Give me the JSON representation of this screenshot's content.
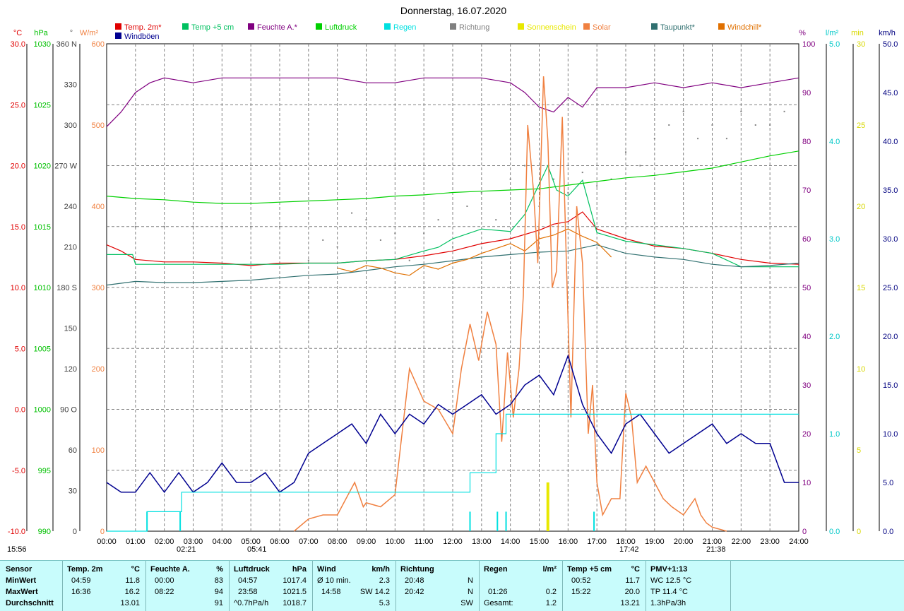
{
  "title": "Donnerstag, 16.07.2020",
  "legend": [
    {
      "label": "Temp. 2m*",
      "color": "#e00000"
    },
    {
      "label": "Temp +5 cm",
      "color": "#00c060"
    },
    {
      "label": "Feuchte A.*",
      "color": "#800080"
    },
    {
      "label": "Luftdruck",
      "color": "#00d000"
    },
    {
      "label": "Regen",
      "color": "#00e0e0"
    },
    {
      "label": "Richtung",
      "color": "#808080"
    },
    {
      "label": "Sonnenschein",
      "color": "#e8e800"
    },
    {
      "label": "Solar",
      "color": "#f08040"
    },
    {
      "label": "Taupunkt*",
      "color": "#307070"
    },
    {
      "label": "Windchill*",
      "color": "#e07000"
    },
    {
      "label": "Windböen",
      "color": "#000090"
    }
  ],
  "axes_units": {
    "temp": "°C",
    "press": "hPa",
    "dir": "°",
    "solar": "W/m²",
    "hum": "%",
    "rain": "l/m²",
    "sun": "min",
    "wind": "km/h"
  },
  "sun_events": {
    "sunrise": "05:41",
    "sunset": "21:38",
    "left": "15:56",
    "mark1": "02:21",
    "mark2": "17:42"
  },
  "chart_data": {
    "type": "line",
    "x_label_ticks": [
      "00:00",
      "01:00",
      "02:00",
      "03:00",
      "04:00",
      "05:00",
      "06:00",
      "07:00",
      "08:00",
      "09:00",
      "10:00",
      "11:00",
      "12:00",
      "13:00",
      "14:00",
      "15:00",
      "16:00",
      "17:00",
      "18:00",
      "19:00",
      "20:00",
      "21:00",
      "22:00",
      "23:00",
      "24:00"
    ],
    "xlim": [
      0,
      24
    ],
    "axes": {
      "temp": {
        "range": [
          -10,
          30
        ],
        "ticks": [
          "-10.0",
          "-5.0",
          "0.0",
          "5.0",
          "10.0",
          "15.0",
          "20.0",
          "25.0",
          "30.0"
        ]
      },
      "press": {
        "range": [
          990,
          1030
        ],
        "ticks": [
          "990",
          "995",
          "1000",
          "1005",
          "1010",
          "1015",
          "1020",
          "1025",
          "1030"
        ]
      },
      "dir": {
        "range": [
          0,
          360
        ],
        "ticks": [
          "0",
          "30",
          "60",
          "90 O",
          "120",
          "150",
          "180 S",
          "210",
          "240",
          "270 W",
          "300",
          "330",
          "360 N"
        ]
      },
      "solar": {
        "range": [
          0,
          600
        ],
        "ticks": [
          "0",
          "100",
          "200",
          "300",
          "400",
          "500",
          "600"
        ]
      },
      "hum": {
        "range": [
          0,
          100
        ],
        "ticks": [
          "0",
          "10",
          "20",
          "30",
          "40",
          "50",
          "60",
          "70",
          "80",
          "90",
          "100"
        ]
      },
      "rain": {
        "range": [
          0,
          5
        ],
        "ticks": [
          "0.0",
          "1.0",
          "2.0",
          "3.0",
          "4.0",
          "5.0"
        ]
      },
      "sun": {
        "range": [
          0,
          30
        ],
        "ticks": [
          "0",
          "5",
          "10",
          "15",
          "20",
          "25",
          "30"
        ]
      },
      "wind": {
        "range": [
          0,
          50
        ],
        "ticks": [
          "0.0",
          "5.0",
          "10.0",
          "15.0",
          "20.0",
          "25.0",
          "30.0",
          "35.0",
          "40.0",
          "45.0",
          "50.0"
        ]
      }
    },
    "series": [
      {
        "name": "Temp. 2m*",
        "axis": "temp",
        "color": "#e00000",
        "x": [
          0,
          0.5,
          1,
          2,
          3,
          4,
          5,
          6,
          7,
          8,
          9,
          10,
          11,
          12,
          13,
          14,
          15,
          15.5,
          16,
          16.5,
          17,
          18,
          19,
          20,
          21,
          22,
          23,
          24
        ],
        "y": [
          13.5,
          13.0,
          12.3,
          12.1,
          12.1,
          12.0,
          11.8,
          12.0,
          12.0,
          12.0,
          12.2,
          12.3,
          12.6,
          13.0,
          13.6,
          14.0,
          14.7,
          15.2,
          15.4,
          16.2,
          14.8,
          14.0,
          13.4,
          13.2,
          12.8,
          12.3,
          12.0,
          11.9
        ]
      },
      {
        "name": "Temp +5 cm",
        "axis": "temp",
        "color": "#00c060",
        "x": [
          0,
          0.9,
          1,
          6,
          7,
          8,
          9,
          10,
          11,
          11.5,
          12,
          13,
          14,
          14.5,
          15,
          15.3,
          15.6,
          16,
          16.5,
          17,
          18,
          19,
          20,
          21,
          22,
          23,
          24
        ],
        "y": [
          12.7,
          12.7,
          11.9,
          11.9,
          12.0,
          12.0,
          12.2,
          12.3,
          13.0,
          13.3,
          14.0,
          14.8,
          14.6,
          16.0,
          18.5,
          20.0,
          18.0,
          17.5,
          18.8,
          14.5,
          13.8,
          13.5,
          13.2,
          12.8,
          11.7,
          11.7,
          11.7
        ]
      },
      {
        "name": "Feuchte A.*",
        "axis": "hum",
        "color": "#800080",
        "x": [
          0,
          0.5,
          1,
          1.5,
          2,
          3,
          4,
          5,
          6,
          7,
          8,
          9,
          10,
          11,
          12,
          13,
          14,
          14.5,
          15,
          15.5,
          16,
          16.5,
          17,
          18,
          19,
          20,
          21,
          22,
          23,
          24
        ],
        "y": [
          83,
          86,
          90,
          92,
          93,
          92,
          93,
          93,
          93,
          93,
          93,
          92,
          92,
          93,
          93,
          93,
          92,
          90,
          87,
          86,
          89,
          87,
          91,
          91,
          92,
          91,
          92,
          91,
          92,
          93
        ]
      },
      {
        "name": "Luftdruck",
        "axis": "press",
        "color": "#00d000",
        "x": [
          0,
          1,
          2,
          3,
          4,
          5,
          6,
          7,
          8,
          9,
          10,
          11,
          12,
          13,
          14,
          15,
          16,
          17,
          18,
          19,
          20,
          21,
          22,
          23,
          24
        ],
        "y": [
          1017.5,
          1017.3,
          1017.2,
          1017.0,
          1016.9,
          1016.9,
          1017.0,
          1017.1,
          1017.2,
          1017.3,
          1017.5,
          1017.6,
          1017.8,
          1017.9,
          1018.0,
          1018.1,
          1018.4,
          1018.7,
          1019.0,
          1019.2,
          1019.5,
          1019.8,
          1020.3,
          1020.8,
          1021.2
        ]
      },
      {
        "name": "Taupunkt*",
        "axis": "temp",
        "color": "#307070",
        "x": [
          0,
          1,
          2,
          3,
          4,
          5,
          6,
          7,
          8,
          9,
          10,
          11,
          12,
          13,
          14,
          15,
          16,
          17,
          18,
          19,
          20,
          21,
          22,
          23,
          24
        ],
        "y": [
          10.2,
          10.5,
          10.4,
          10.4,
          10.5,
          10.6,
          10.8,
          11.0,
          11.1,
          11.4,
          11.7,
          11.9,
          12.2,
          12.5,
          12.7,
          12.9,
          13.0,
          13.5,
          12.8,
          12.5,
          12.3,
          11.9,
          11.7,
          11.8,
          12.0
        ]
      },
      {
        "name": "Windchill*",
        "axis": "temp",
        "color": "#e07000",
        "x": [
          8,
          8.5,
          9,
          9.5,
          10,
          10.5,
          11,
          11.5,
          12,
          12.5,
          13,
          13.5,
          14,
          14.5,
          15,
          15.5,
          16,
          16.5,
          17,
          17.5
        ],
        "y": [
          11.6,
          11.3,
          11.8,
          11.6,
          11.2,
          11.0,
          11.8,
          11.5,
          12.0,
          12.3,
          12.8,
          13.2,
          13.6,
          13.0,
          14.0,
          14.3,
          14.8,
          14.2,
          13.7,
          12.5
        ]
      },
      {
        "name": "Solar",
        "axis": "solar",
        "color": "#f08040",
        "x": [
          6.5,
          7,
          7.5,
          8,
          8.3,
          8.6,
          8.9,
          9.0,
          9.5,
          10,
          10.5,
          11,
          11.5,
          12,
          12.3,
          12.6,
          12.9,
          13.2,
          13.5,
          13.7,
          13.9,
          14.1,
          14.3,
          14.45,
          14.6,
          14.8,
          14.95,
          15.15,
          15.3,
          15.45,
          15.6,
          15.8,
          15.95,
          16.1,
          16.3,
          16.5,
          16.7,
          16.85,
          17.0,
          17.2,
          17.5,
          17.8,
          18.0,
          18.2,
          18.4,
          18.7,
          19.0,
          19.3,
          19.6,
          20.0,
          20.4,
          20.6,
          20.8,
          21.0,
          21.5
        ],
        "y": [
          0,
          15,
          20,
          20,
          40,
          60,
          30,
          35,
          30,
          45,
          200,
          160,
          150,
          120,
          200,
          255,
          210,
          270,
          230,
          110,
          220,
          140,
          200,
          290,
          500,
          420,
          330,
          560,
          480,
          300,
          320,
          510,
          320,
          140,
          400,
          330,
          120,
          180,
          60,
          20,
          40,
          40,
          170,
          140,
          60,
          80,
          60,
          40,
          30,
          20,
          40,
          20,
          10,
          5,
          0
        ]
      },
      {
        "name": "Windböen",
        "axis": "wind",
        "color": "#000090",
        "x": [
          0,
          0.5,
          1,
          1.5,
          2,
          2.5,
          3,
          3.5,
          4,
          4.5,
          5,
          5.5,
          6,
          6.5,
          7,
          7.5,
          8,
          8.5,
          9,
          9.5,
          10,
          10.5,
          11,
          11.5,
          12,
          12.5,
          13,
          13.5,
          14,
          14.5,
          15,
          15.5,
          16,
          16.5,
          17,
          17.5,
          18,
          18.5,
          19,
          19.5,
          20,
          20.5,
          21,
          21.5,
          22,
          22.5,
          23,
          23.5,
          24
        ],
        "y": [
          5,
          4,
          4,
          6,
          4,
          6,
          4,
          5,
          7,
          5,
          5,
          6,
          4,
          5,
          8,
          9,
          10,
          11,
          9,
          12,
          10,
          12,
          11,
          13,
          12,
          13,
          14,
          12,
          13,
          15,
          16,
          14,
          18,
          13,
          10,
          8,
          11,
          12,
          10,
          8,
          9,
          10,
          11,
          9,
          10,
          9,
          9,
          5,
          5
        ]
      },
      {
        "name": "Regen",
        "axis": "rain",
        "color": "#00e0e0",
        "x": [
          0,
          1.4,
          1.4,
          2.6,
          2.6,
          12.6,
          12.6,
          13.5,
          13.5,
          13.85,
          13.85,
          16.95,
          16.95,
          24
        ],
        "y": [
          0,
          0,
          0.2,
          0.2,
          0.4,
          0.4,
          0.6,
          0.6,
          1.0,
          1.0,
          1.2,
          1.2,
          1.2,
          1.2
        ]
      }
    ],
    "direction_points": {
      "axis": "dir",
      "color": "#808080",
      "x": [
        0,
        1,
        2,
        3,
        4,
        5,
        6,
        7,
        7.5,
        8,
        8.5,
        9,
        9.5,
        10,
        10.5,
        11,
        11.5,
        12,
        12.5,
        13,
        13.5,
        14,
        14.5,
        15,
        15.5,
        16,
        16.5,
        17,
        17.5,
        18,
        18.5,
        19,
        19.5,
        20,
        20.5,
        21,
        21.5,
        22,
        22.5,
        23,
        23.5,
        24
      ],
      "y": [
        225,
        225,
        225,
        225,
        225,
        225,
        225,
        200,
        215,
        210,
        235,
        230,
        215,
        220,
        200,
        220,
        230,
        210,
        240,
        250,
        230,
        260,
        270,
        240,
        260,
        250,
        265,
        255,
        260,
        280,
        270,
        290,
        300,
        310,
        290,
        300,
        290,
        310,
        300,
        300,
        310,
        300
      ]
    },
    "rain_bars": {
      "axis": "rain",
      "color": "#00e0e0",
      "x": [
        1.4,
        2.55,
        12.6,
        13.55,
        13.85,
        16.9
      ],
      "y": [
        0.2,
        0.2,
        0.2,
        0.2,
        0.2,
        0.2
      ]
    },
    "sun_bars": {
      "axis": "sun",
      "color": "#e8e800",
      "x": [
        15.3
      ],
      "y": [
        3
      ]
    }
  },
  "stats": {
    "headers": {
      "sensor": "Sensor",
      "temp": "Temp. 2m",
      "temp_u": "°C",
      "hum": "Feuchte A.",
      "hum_u": "%",
      "press": "Luftdruck",
      "press_u": "hPa",
      "wind": "Wind",
      "wind_u": "km/h",
      "dir": "Richtung",
      "rain": "Regen",
      "rain_u": "l/m²",
      "t5": "Temp +5 cm",
      "t5_u": "°C",
      "pmv": "PMV+1:13"
    },
    "rows": [
      {
        "label": "MinWert",
        "temp_t": "04:59",
        "temp_v": "11.8",
        "hum_t": "00:00",
        "hum_v": "83",
        "press_t": "04:57",
        "press_v": "1017.4",
        "wind_t": "Ø 10 min.",
        "wind_v": "2.3",
        "dir_t": "20:48",
        "dir_v": "N",
        "rain_t": "",
        "rain_v": "",
        "t5_t": "00:52",
        "t5_v": "11.7",
        "pmv": "WC 12.5 °C"
      },
      {
        "label": "MaxWert",
        "temp_t": "16:36",
        "temp_v": "16.2",
        "hum_t": "08:22",
        "hum_v": "94",
        "press_t": "23:58",
        "press_v": "1021.5",
        "wind_t": "14:58",
        "wind_v": "SW 14.2",
        "dir_t": "20:42",
        "dir_v": "N",
        "rain_t": "01:26",
        "rain_v": "0.2",
        "t5_t": "15:22",
        "t5_v": "20.0",
        "pmv": "TP 11.4 °C"
      },
      {
        "label": "Durchschnitt",
        "temp_t": "",
        "temp_v": "13.01",
        "hum_t": "",
        "hum_v": "91",
        "press_t": "^0.7hPa/h",
        "press_v": "1018.7",
        "wind_t": "",
        "wind_v": "5.3",
        "dir_t": "",
        "dir_v": "SW",
        "rain_t": "Gesamt:",
        "rain_v": "1.2",
        "t5_t": "",
        "t5_v": "13.21",
        "pmv": "1.3hPa/3h"
      }
    ]
  }
}
